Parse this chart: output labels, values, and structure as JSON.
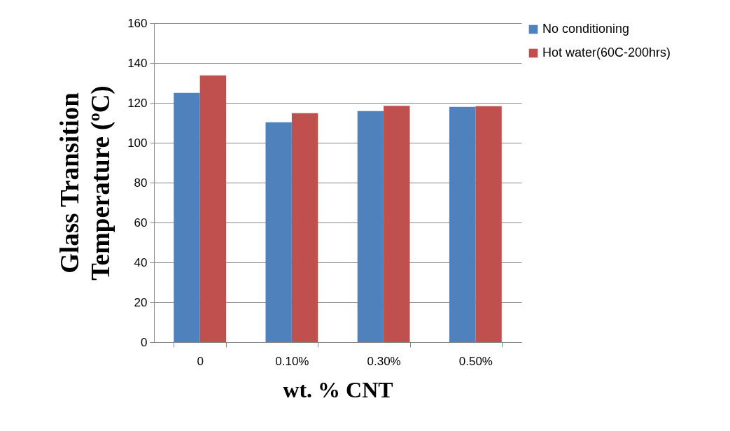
{
  "chart_data": {
    "type": "bar",
    "xlabel": "wt. % CNT",
    "ylabel": "Glass Transition Temperature (ºC)",
    "categories": [
      "0",
      "0.10%",
      "0.30%",
      "0.50%"
    ],
    "series": [
      {
        "name": "No conditioning",
        "color": "#4f81bd",
        "values": [
          125,
          110.3,
          115.9,
          118
        ]
      },
      {
        "name": "Hot water(60C-200hrs)",
        "color": "#c0504d",
        "values": [
          133.8,
          114.8,
          118.5,
          118.3
        ]
      }
    ],
    "ylim": [
      0,
      160
    ],
    "yticks": [
      0,
      20,
      40,
      60,
      80,
      100,
      120,
      140,
      160
    ],
    "grid": "y",
    "legend": "right"
  }
}
